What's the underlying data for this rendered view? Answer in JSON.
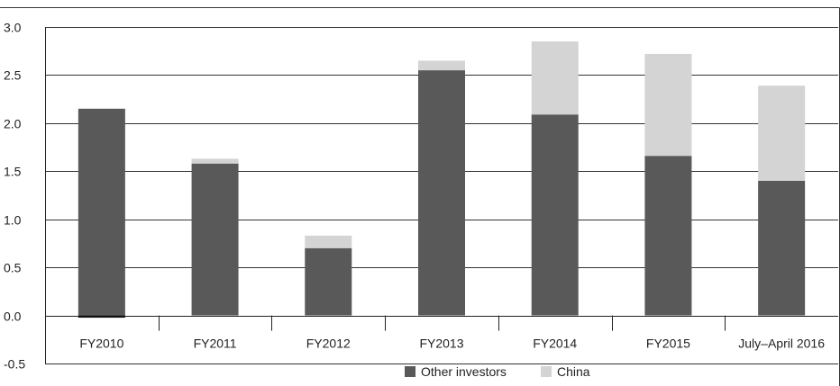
{
  "chart_data": {
    "type": "bar",
    "stacked": true,
    "categories": [
      "FY2010",
      "FY2011",
      "FY2012",
      "FY2013",
      "FY2014",
      "FY2015",
      "July–April 2016"
    ],
    "series": [
      {
        "name": "Other investors",
        "values": [
          2.15,
          1.58,
          0.7,
          2.55,
          2.09,
          1.66,
          1.4
        ]
      },
      {
        "name": "China",
        "values": [
          -0.02,
          0.05,
          0.13,
          0.1,
          0.76,
          1.06,
          0.99
        ]
      }
    ],
    "title": "",
    "xlabel": "",
    "ylabel": "",
    "ylim": [
      -0.5,
      3.0
    ],
    "yticks": [
      "3.0",
      "2.5",
      "2.0",
      "1.5",
      "1.0",
      "0.5",
      "0.0",
      "-0.5"
    ],
    "grid": true,
    "legend_position": "bottom",
    "colors": {
      "Other investors": "#595959",
      "China": "#d4d4d4",
      "negative": "#111111"
    }
  }
}
